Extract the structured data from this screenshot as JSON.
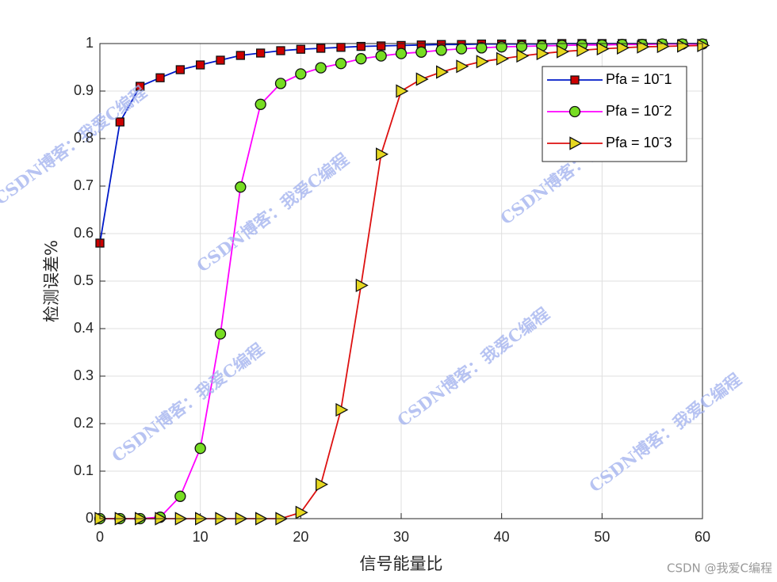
{
  "chart_data": {
    "type": "line",
    "x": [
      0,
      2,
      4,
      6,
      8,
      10,
      12,
      14,
      16,
      18,
      20,
      22,
      24,
      26,
      28,
      30,
      32,
      34,
      36,
      38,
      40,
      42,
      44,
      46,
      48,
      50,
      52,
      54,
      56,
      58,
      60
    ],
    "series": [
      {
        "name": "Pfa = 10ˉ1",
        "color": "#0019c8",
        "marker": "square",
        "marker_color": "#cc0000",
        "values": [
          0.58,
          0.835,
          0.91,
          0.928,
          0.945,
          0.955,
          0.965,
          0.975,
          0.98,
          0.985,
          0.988,
          0.99,
          0.992,
          0.994,
          0.995,
          0.996,
          0.997,
          0.998,
          0.998,
          0.999,
          0.999,
          0.999,
          0.999,
          1,
          1,
          1,
          1,
          1,
          1,
          1,
          1
        ]
      },
      {
        "name": "Pfa = 10ˉ2",
        "color": "#ff00ff",
        "marker": "circle",
        "marker_color": "#77dd22",
        "values": [
          0,
          0,
          0,
          0.003,
          0.047,
          0.148,
          0.389,
          0.698,
          0.872,
          0.916,
          0.936,
          0.949,
          0.958,
          0.968,
          0.974,
          0.979,
          0.982,
          0.986,
          0.989,
          0.991,
          0.993,
          0.994,
          0.995,
          0.996,
          0.997,
          0.997,
          0.998,
          0.998,
          0.999,
          0.999,
          0.999
        ]
      },
      {
        "name": "Pfa = 10ˉ3",
        "color": "#dd1111",
        "marker": "triangle-right",
        "marker_color": "#e6d820",
        "values": [
          0,
          0,
          0,
          0,
          0,
          0,
          0,
          0,
          0,
          0,
          0.013,
          0.072,
          0.229,
          0.491,
          0.767,
          0.9,
          0.925,
          0.94,
          0.952,
          0.962,
          0.968,
          0.974,
          0.979,
          0.983,
          0.986,
          0.989,
          0.991,
          0.993,
          0.994,
          0.995,
          0.996
        ]
      }
    ],
    "xlabel": "信号能量比",
    "ylabel": "检测误差%",
    "xlim": [
      0,
      60
    ],
    "xticks": [
      0,
      10,
      20,
      30,
      40,
      50,
      60
    ],
    "ylim": [
      0,
      1
    ],
    "yticks": [
      0,
      0.1,
      0.2,
      0.3,
      0.4,
      0.5,
      0.6,
      0.7,
      0.8,
      0.9,
      1
    ],
    "grid": true,
    "legend": "upper right"
  },
  "watermark": "CSDN博客：我爱C编程",
  "credit": "CSDN @我爱C编程"
}
